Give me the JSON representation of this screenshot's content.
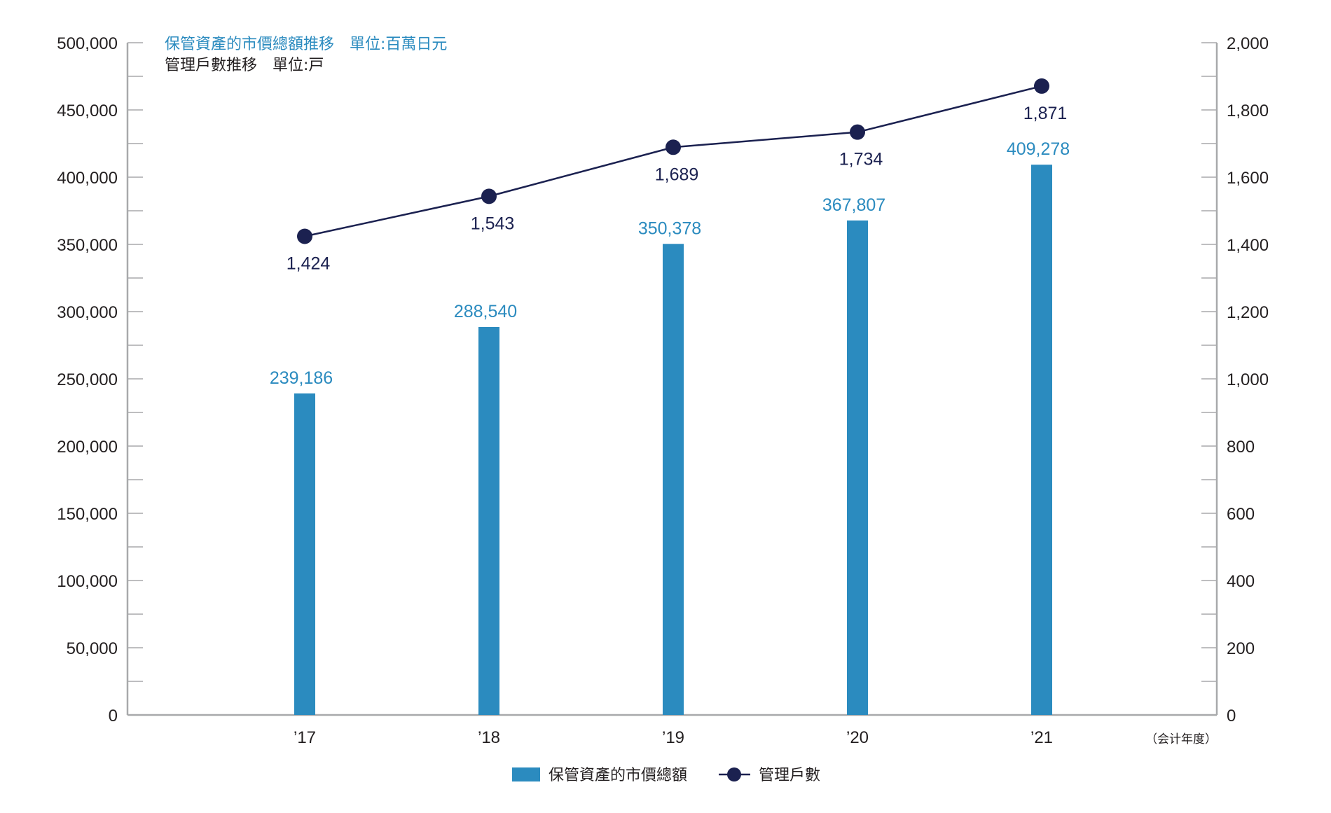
{
  "chart_data": {
    "type": "bar",
    "categories": [
      "’17",
      "’18",
      "’19",
      "’20",
      "’21"
    ],
    "x_unit": "（会计年度）",
    "notes": {
      "bar_title": "保管資產的市價總額推移　單位:百萬日元",
      "line_title": "管理戶數推移　單位:戸"
    },
    "series": [
      {
        "name": "保管資產的市價總額",
        "type": "bar",
        "axis": "left",
        "values": [
          239186,
          288540,
          350378,
          367807,
          409278
        ],
        "labels": [
          "239,186",
          "288,540",
          "350,378",
          "367,807",
          "409,278"
        ],
        "color": "#2b8bbf"
      },
      {
        "name": "管理戶數",
        "type": "line",
        "axis": "right",
        "values": [
          1424,
          1543,
          1689,
          1734,
          1871
        ],
        "labels": [
          "1,424",
          "1,543",
          "1,689",
          "1,734",
          "1,871"
        ],
        "color": "#1b2150"
      }
    ],
    "y_left": {
      "range": [
        0,
        500000
      ],
      "ticks": [
        "0",
        "50,000",
        "100,000",
        "150,000",
        "200,000",
        "250,000",
        "300,000",
        "350,000",
        "400,000",
        "450,000",
        "500,000"
      ]
    },
    "y_right": {
      "range": [
        0,
        2000
      ],
      "ticks": [
        "0",
        "200",
        "400",
        "600",
        "800",
        "1,000",
        "1,200",
        "1,400",
        "1,600",
        "1,800",
        "2,000"
      ]
    },
    "grid": false,
    "legend_position": "bottom-center",
    "colors": {
      "axis": "#a8a9ab",
      "bar": "#2b8bbf",
      "line": "#1b2150",
      "text": "#231f20"
    }
  }
}
